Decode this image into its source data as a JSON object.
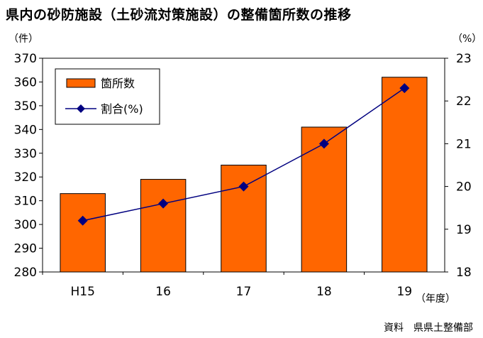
{
  "title": "県内の砂防施設（土砂流対策施設）の整備箇所数の推移",
  "left_unit": "（件）",
  "right_unit": "（%）",
  "x_unit": "（年度）",
  "source": "資料　県県土整備部",
  "colors": {
    "bar": "#FF6600",
    "bar_stroke": "#000000",
    "line": "#000080"
  },
  "chart_data": {
    "type": "bar",
    "categories": [
      "H15",
      "16",
      "17",
      "18",
      "19"
    ],
    "series": [
      {
        "name": "箇所数",
        "type": "bar",
        "axis": "left",
        "values": [
          313,
          319,
          325,
          341,
          362
        ]
      },
      {
        "name": "割合(%)",
        "type": "line",
        "axis": "right",
        "values": [
          19.2,
          19.6,
          20.0,
          21.0,
          22.3
        ]
      }
    ],
    "ylim": [
      280,
      370
    ],
    "yticks": [
      280,
      290,
      300,
      310,
      320,
      330,
      340,
      350,
      360,
      370
    ],
    "y2lim": [
      18,
      23
    ],
    "y2ticks": [
      18,
      19,
      20,
      21,
      22,
      23
    ],
    "legend": {
      "position": "top-left",
      "entries": [
        "箇所数",
        "割合(%)"
      ]
    },
    "grid": false
  }
}
